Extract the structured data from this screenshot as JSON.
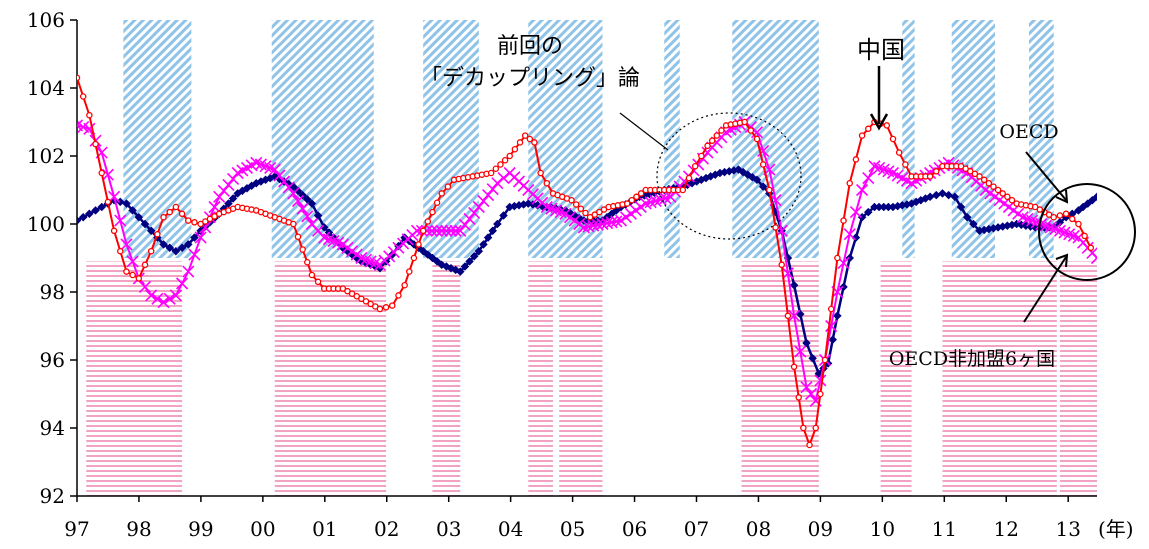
{
  "chart_data": {
    "type": "line",
    "title": "",
    "xlabel": "",
    "x_unit_label": "(年)",
    "ylabel": "",
    "ylim": [
      92,
      106
    ],
    "yticks": [
      92,
      94,
      96,
      98,
      100,
      102,
      104,
      106
    ],
    "x_tick_labels": [
      "97",
      "98",
      "99",
      "00",
      "01",
      "02",
      "03",
      "04",
      "05",
      "06",
      "07",
      "08",
      "09",
      "10",
      "11",
      "12",
      "13"
    ],
    "x_range": [
      1997.0,
      2013.5
    ],
    "series": [
      {
        "name": "中国",
        "color": "#ff0000",
        "marker": "circle",
        "points": [
          [
            1997.0,
            104.3
          ],
          [
            1997.2,
            103.2
          ],
          [
            1997.4,
            101.5
          ],
          [
            1997.6,
            99.8
          ],
          [
            1997.8,
            98.6
          ],
          [
            1998.0,
            98.4
          ],
          [
            1998.2,
            99.2
          ],
          [
            1998.4,
            100.2
          ],
          [
            1998.6,
            100.5
          ],
          [
            1998.8,
            100.1
          ],
          [
            1999.0,
            100.0
          ],
          [
            1999.3,
            100.3
          ],
          [
            1999.6,
            100.5
          ],
          [
            1999.9,
            100.4
          ],
          [
            2000.2,
            100.2
          ],
          [
            2000.5,
            100.0
          ],
          [
            2000.8,
            98.5
          ],
          [
            2001.0,
            98.1
          ],
          [
            2001.3,
            98.1
          ],
          [
            2001.6,
            97.8
          ],
          [
            2001.9,
            97.5
          ],
          [
            2002.1,
            97.6
          ],
          [
            2002.3,
            98.2
          ],
          [
            2002.6,
            99.8
          ],
          [
            2002.9,
            100.9
          ],
          [
            2003.1,
            101.3
          ],
          [
            2003.4,
            101.4
          ],
          [
            2003.7,
            101.5
          ],
          [
            2004.0,
            102.0
          ],
          [
            2004.25,
            102.6
          ],
          [
            2004.4,
            102.4
          ],
          [
            2004.5,
            101.5
          ],
          [
            2004.7,
            100.9
          ],
          [
            2005.0,
            100.7
          ],
          [
            2005.3,
            100.2
          ],
          [
            2005.6,
            100.5
          ],
          [
            2005.9,
            100.6
          ],
          [
            2006.2,
            101.0
          ],
          [
            2006.5,
            101.0
          ],
          [
            2006.8,
            101.0
          ],
          [
            2007.0,
            101.7
          ],
          [
            2007.2,
            102.3
          ],
          [
            2007.5,
            102.9
          ],
          [
            2007.8,
            103.0
          ],
          [
            2008.0,
            102.5
          ],
          [
            2008.2,
            101.0
          ],
          [
            2008.4,
            98.8
          ],
          [
            2008.6,
            95.8
          ],
          [
            2008.75,
            94.0
          ],
          [
            2008.85,
            93.5
          ],
          [
            2008.95,
            94.0
          ],
          [
            2009.1,
            96.0
          ],
          [
            2009.3,
            99.0
          ],
          [
            2009.5,
            101.2
          ],
          [
            2009.7,
            102.6
          ],
          [
            2009.9,
            103.0
          ],
          [
            2010.1,
            102.9
          ],
          [
            2010.3,
            102.1
          ],
          [
            2010.5,
            101.4
          ],
          [
            2010.8,
            101.4
          ],
          [
            2011.0,
            101.7
          ],
          [
            2011.3,
            101.7
          ],
          [
            2011.6,
            101.4
          ],
          [
            2011.9,
            101.0
          ],
          [
            2012.2,
            100.6
          ],
          [
            2012.5,
            100.5
          ],
          [
            2012.8,
            100.2
          ],
          [
            2013.0,
            100.3
          ],
          [
            2013.2,
            100.0
          ],
          [
            2013.4,
            99.3
          ]
        ]
      },
      {
        "name": "OECD非加盟6ヶ国",
        "color": "#ff00ff",
        "marker": "x",
        "points": [
          [
            1997.0,
            102.9
          ],
          [
            1997.2,
            102.8
          ],
          [
            1997.4,
            102.1
          ],
          [
            1997.6,
            100.8
          ],
          [
            1997.8,
            99.4
          ],
          [
            1998.0,
            98.4
          ],
          [
            1998.2,
            97.9
          ],
          [
            1998.4,
            97.7
          ],
          [
            1998.6,
            97.9
          ],
          [
            1998.8,
            98.6
          ],
          [
            1999.0,
            99.6
          ],
          [
            1999.3,
            100.8
          ],
          [
            1999.6,
            101.5
          ],
          [
            1999.9,
            101.8
          ],
          [
            2000.2,
            101.6
          ],
          [
            2000.5,
            100.9
          ],
          [
            2000.8,
            100.0
          ],
          [
            2001.0,
            99.6
          ],
          [
            2001.3,
            99.4
          ],
          [
            2001.6,
            99.0
          ],
          [
            2001.9,
            98.8
          ],
          [
            2002.2,
            99.3
          ],
          [
            2002.5,
            99.8
          ],
          [
            2002.9,
            99.8
          ],
          [
            2003.2,
            99.8
          ],
          [
            2003.5,
            100.5
          ],
          [
            2003.8,
            101.2
          ],
          [
            2004.0,
            101.5
          ],
          [
            2004.3,
            101.0
          ],
          [
            2004.6,
            100.5
          ],
          [
            2004.9,
            100.3
          ],
          [
            2005.2,
            99.9
          ],
          [
            2005.5,
            100.0
          ],
          [
            2005.8,
            100.1
          ],
          [
            2006.2,
            100.6
          ],
          [
            2006.6,
            100.8
          ],
          [
            2006.9,
            101.4
          ],
          [
            2007.2,
            102.1
          ],
          [
            2007.5,
            102.7
          ],
          [
            2007.8,
            103.0
          ],
          [
            2008.0,
            102.7
          ],
          [
            2008.2,
            101.6
          ],
          [
            2008.4,
            99.8
          ],
          [
            2008.6,
            97.3
          ],
          [
            2008.8,
            95.2
          ],
          [
            2008.95,
            94.8
          ],
          [
            2009.1,
            96.0
          ],
          [
            2009.3,
            98.0
          ],
          [
            2009.5,
            99.7
          ],
          [
            2009.7,
            101.0
          ],
          [
            2009.9,
            101.7
          ],
          [
            2010.2,
            101.5
          ],
          [
            2010.5,
            101.2
          ],
          [
            2010.8,
            101.5
          ],
          [
            2011.1,
            101.8
          ],
          [
            2011.4,
            101.5
          ],
          [
            2011.7,
            101.0
          ],
          [
            2012.0,
            100.6
          ],
          [
            2012.3,
            100.2
          ],
          [
            2012.6,
            100.0
          ],
          [
            2012.9,
            99.8
          ],
          [
            2013.2,
            99.6
          ],
          [
            2013.5,
            99.0
          ]
        ]
      },
      {
        "name": "OECD",
        "color": "#000080",
        "marker": "diamond",
        "points": [
          [
            1997.0,
            100.1
          ],
          [
            1997.2,
            100.3
          ],
          [
            1997.4,
            100.5
          ],
          [
            1997.6,
            100.7
          ],
          [
            1997.8,
            100.6
          ],
          [
            1998.0,
            100.2
          ],
          [
            1998.2,
            99.8
          ],
          [
            1998.4,
            99.4
          ],
          [
            1998.6,
            99.2
          ],
          [
            1998.8,
            99.4
          ],
          [
            1999.0,
            99.8
          ],
          [
            1999.3,
            100.3
          ],
          [
            1999.6,
            100.9
          ],
          [
            1999.9,
            101.2
          ],
          [
            2000.2,
            101.4
          ],
          [
            2000.5,
            101.1
          ],
          [
            2000.8,
            100.6
          ],
          [
            2001.0,
            99.9
          ],
          [
            2001.3,
            99.3
          ],
          [
            2001.6,
            98.9
          ],
          [
            2001.9,
            98.7
          ],
          [
            2002.1,
            99.1
          ],
          [
            2002.3,
            99.6
          ],
          [
            2002.6,
            99.2
          ],
          [
            2002.9,
            98.8
          ],
          [
            2003.2,
            98.6
          ],
          [
            2003.5,
            99.2
          ],
          [
            2003.8,
            100.0
          ],
          [
            2004.0,
            100.5
          ],
          [
            2004.3,
            100.6
          ],
          [
            2004.6,
            100.5
          ],
          [
            2004.9,
            100.4
          ],
          [
            2005.2,
            100.1
          ],
          [
            2005.5,
            100.1
          ],
          [
            2005.8,
            100.5
          ],
          [
            2006.1,
            100.8
          ],
          [
            2006.5,
            101.0
          ],
          [
            2006.8,
            101.1
          ],
          [
            2007.1,
            101.3
          ],
          [
            2007.4,
            101.5
          ],
          [
            2007.7,
            101.6
          ],
          [
            2008.0,
            101.3
          ],
          [
            2008.2,
            100.9
          ],
          [
            2008.4,
            99.8
          ],
          [
            2008.6,
            98.2
          ],
          [
            2008.8,
            96.5
          ],
          [
            2009.0,
            95.6
          ],
          [
            2009.15,
            95.9
          ],
          [
            2009.3,
            97.3
          ],
          [
            2009.5,
            99.0
          ],
          [
            2009.7,
            100.2
          ],
          [
            2009.9,
            100.5
          ],
          [
            2010.2,
            100.5
          ],
          [
            2010.5,
            100.6
          ],
          [
            2010.8,
            100.8
          ],
          [
            2011.0,
            100.9
          ],
          [
            2011.2,
            100.8
          ],
          [
            2011.4,
            100.2
          ],
          [
            2011.6,
            99.8
          ],
          [
            2011.9,
            99.9
          ],
          [
            2012.2,
            100.0
          ],
          [
            2012.5,
            99.9
          ],
          [
            2012.8,
            99.9
          ],
          [
            2013.0,
            100.2
          ],
          [
            2013.2,
            100.4
          ],
          [
            2013.5,
            100.8
          ]
        ]
      }
    ],
    "shaded_periods": {
      "upper_blue": [
        [
          1997.75,
          1998.85
        ],
        [
          2000.15,
          2001.8
        ],
        [
          2002.6,
          2003.5
        ],
        [
          2004.3,
          2005.5
        ],
        [
          2006.5,
          2006.75
        ],
        [
          2007.6,
          2009.0
        ],
        [
          2010.35,
          2010.55
        ],
        [
          2011.15,
          2011.85
        ],
        [
          2012.4,
          2012.8
        ]
      ],
      "lower_pink": [
        [
          1997.15,
          1998.7
        ],
        [
          2000.2,
          2002.0
        ],
        [
          2002.75,
          2003.2
        ],
        [
          2004.3,
          2004.7
        ],
        [
          2004.8,
          2005.5
        ],
        [
          2007.75,
          2009.0
        ],
        [
          2010.0,
          2010.5
        ],
        [
          2011.0,
          2012.85
        ],
        [
          2012.9,
          2013.5
        ]
      ]
    },
    "annotations": [
      {
        "id": "decoupling",
        "lines": [
          "前回の",
          "「デカップリング」論"
        ]
      },
      {
        "id": "china",
        "text": "中国"
      },
      {
        "id": "oecd",
        "text": "OECD"
      },
      {
        "id": "non_oecd",
        "text": "OECD非加盟6ヶ国"
      }
    ]
  }
}
